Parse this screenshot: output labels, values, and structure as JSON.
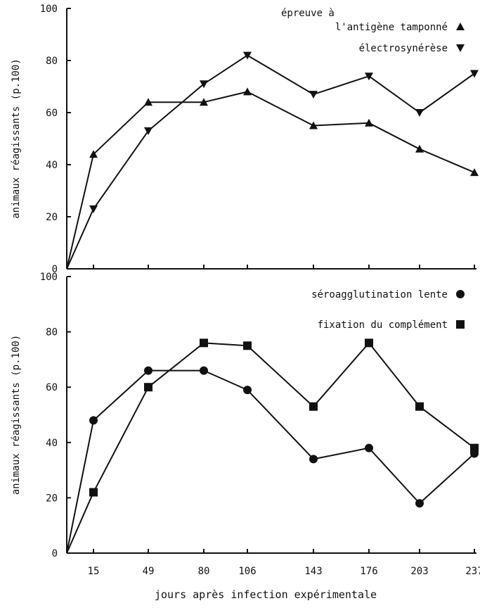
{
  "chart_data": [
    {
      "type": "line",
      "ylabel": "animaux réagissants (p.100)",
      "ylim": [
        0,
        100
      ],
      "y_ticks": [
        "0",
        "20",
        "40",
        "60",
        "80",
        "100"
      ],
      "x": [
        0,
        15,
        49,
        80,
        106,
        143,
        176,
        203,
        237
      ],
      "x_tick_labels": [
        "15",
        "49",
        "80",
        "106",
        "143",
        "176",
        "203",
        "237"
      ],
      "grid": false,
      "legend_position": "top-right",
      "series": [
        {
          "name": "épreuve à l'antigène tamponné",
          "legend_lines": [
            "épreuve à",
            "l'antigène tamponné"
          ],
          "marker": "triangle-up",
          "x": [
            0,
            15,
            49,
            80,
            106,
            143,
            176,
            203,
            237
          ],
          "values": [
            0,
            44,
            64,
            64,
            68,
            55,
            56,
            46,
            37
          ]
        },
        {
          "name": "électrosynérèse",
          "legend_lines": [
            "électrosynérèse"
          ],
          "marker": "triangle-down",
          "x": [
            0,
            15,
            49,
            80,
            106,
            143,
            176,
            203,
            237
          ],
          "values": [
            0,
            23,
            53,
            71,
            82,
            67,
            74,
            60,
            75
          ]
        }
      ]
    },
    {
      "type": "line",
      "ylabel": "animaux réagissants (p.100)",
      "ylim": [
        0,
        100
      ],
      "y_ticks": [
        "0",
        "20",
        "40",
        "60",
        "80",
        "100"
      ],
      "x": [
        0,
        15,
        49,
        80,
        106,
        143,
        176,
        203,
        237
      ],
      "x_tick_labels": [
        "15",
        "49",
        "80",
        "106",
        "143",
        "176",
        "203",
        "237"
      ],
      "xlabel": "jours après infection expérimentale",
      "grid": false,
      "legend_position": "top-right",
      "series": [
        {
          "name": "séroagglutination lente",
          "legend_lines": [
            "séroagglutination lente"
          ],
          "marker": "circle",
          "x": [
            0,
            15,
            49,
            80,
            106,
            143,
            176,
            203,
            237
          ],
          "values": [
            0,
            48,
            66,
            66,
            59,
            34,
            38,
            18,
            36
          ]
        },
        {
          "name": "fixation du complément",
          "legend_lines": [
            "fixation du complément"
          ],
          "marker": "square",
          "x": [
            0,
            15,
            49,
            80,
            106,
            143,
            176,
            203,
            237
          ],
          "values": [
            0,
            22,
            60,
            76,
            75,
            53,
            76,
            53,
            38
          ]
        }
      ]
    }
  ]
}
